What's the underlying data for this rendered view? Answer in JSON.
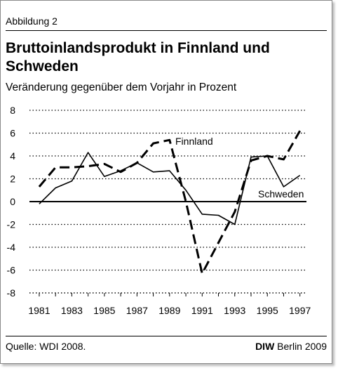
{
  "figure_label": "Abbildung 2",
  "source": "Quelle: WDI 2008.",
  "credit": {
    "brand": "DIW",
    "rest": " Berlin 2009"
  },
  "chart_data": {
    "type": "line",
    "title": "Bruttoinlandsprodukt in Finnland und Schweden",
    "subtitle": "Veränderung gegenüber dem Vorjahr in Prozent",
    "xlabel": "",
    "ylabel": "",
    "x": [
      1981,
      1982,
      1983,
      1984,
      1985,
      1986,
      1987,
      1988,
      1989,
      1990,
      1991,
      1992,
      1993,
      1994,
      1995,
      1996,
      1997
    ],
    "xlim": [
      1980.4,
      1997.4
    ],
    "ylim": [
      -8,
      8
    ],
    "yticks": [
      8,
      6,
      4,
      2,
      0,
      -2,
      -4,
      -6,
      -8
    ],
    "xticks": [
      1981,
      1983,
      1985,
      1987,
      1989,
      1991,
      1993,
      1995,
      1997
    ],
    "grid": "horizontal dotted",
    "series": [
      {
        "name": "Finnland",
        "style": "dashed",
        "values": [
          1.3,
          3.0,
          3.0,
          3.1,
          3.3,
          2.6,
          3.4,
          5.1,
          5.4,
          0.0,
          -6.3,
          -3.6,
          -0.9,
          3.6,
          4.0,
          3.7,
          6.2
        ]
      },
      {
        "name": "Schweden",
        "style": "solid",
        "values": [
          -0.2,
          1.2,
          1.8,
          4.3,
          2.2,
          2.7,
          3.4,
          2.6,
          2.7,
          1.0,
          -1.1,
          -1.2,
          -2.0,
          3.9,
          4.0,
          1.3,
          2.3
        ]
      }
    ],
    "colors": {
      "line": "#000000",
      "grid": "#000000"
    }
  }
}
